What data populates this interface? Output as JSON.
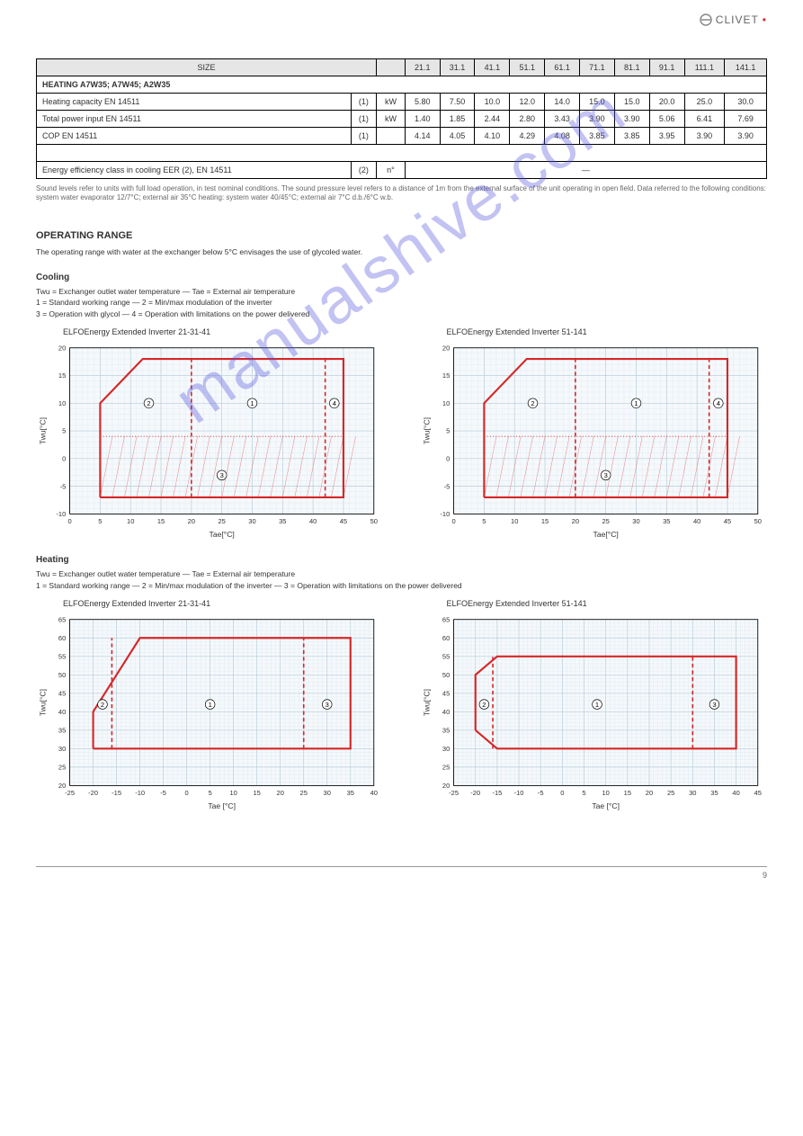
{
  "logo_text": "CLIVET",
  "table": {
    "headers": [
      "SIZE",
      "",
      "",
      "21.1",
      "31.1",
      "41.1",
      "51.1",
      "61.1",
      "71.1",
      "81.1",
      "91.1",
      "111.1",
      "141.1"
    ],
    "section_header": "HEATING A7W35; A7W45; A2W35",
    "rows": [
      {
        "label": "Heating capacity EN 14511",
        "unit": "kW",
        "vals": [
          "5.80",
          "7.50",
          "10.0",
          "12.0",
          "14.0",
          "15.0",
          "15.0",
          "20.0",
          "25.0",
          "30.0"
        ]
      },
      {
        "label": "Total power input EN 14511",
        "unit": "kW",
        "vals": [
          "1.40",
          "1.85",
          "2.44",
          "2.80",
          "3.43",
          "3.90",
          "3.90",
          "5.06",
          "6.41",
          "7.69"
        ]
      },
      {
        "label": "COP EN 14511",
        "unit": "",
        "vals": [
          "4.14",
          "4.05",
          "4.10",
          "4.29",
          "4.08",
          "3.85",
          "3.85",
          "3.95",
          "3.90",
          "3.90"
        ]
      }
    ],
    "note_row": {
      "label": "Energy efficiency class in cooling EER (2), EN 14511",
      "unit": "n°"
    },
    "val_note": "—"
  },
  "footnote": "Sound levels refer to units with full load operation, in test nominal conditions. The sound pressure level refers to a distance of 1m from the external surface of the unit operating in open field. Data referred to the following conditions: system water evaporator 12/7°C; external air 35°C heating: system water 40/45°C; external air 7°C d.b./6°C w.b.",
  "sec_operating": "OPERATING RANGE",
  "op_body": "The operating range with water at the exchanger below 5°C envisages the use of glycoled water.",
  "sub_cooling": "Cooling",
  "cooling_legend": "Twu = Exchanger outlet water temperature — Tae = External air temperature\n1 = Standard working range — 2 = Min/max modulation of the inverter\n3 = Operation with glycol — 4 = Operation with limitations on the power delivered",
  "chart_cool_left_title": "ELFOEnergy Extended Inverter 21-31-41",
  "chart_cool_right_title": "ELFOEnergy Extended Inverter 51-141",
  "chart_cool": {
    "type": "line-region",
    "xlabel": "Tae[°C]",
    "ylabel": "Twu[°C]",
    "xlim": [
      0,
      50
    ],
    "ylim": [
      -10,
      20
    ],
    "xticks": [
      0,
      5,
      10,
      15,
      20,
      25,
      30,
      35,
      40,
      45,
      50
    ],
    "yticks": [
      -10,
      -5,
      0,
      5,
      10,
      15,
      20
    ],
    "grid_minor": "#d8e4ec",
    "grid_major": "#b8ccd8",
    "line_color": "#d62728",
    "line_width": 2,
    "dash_color": "#d62728",
    "hatch_color": "#d62728",
    "background": "#f5f9fc",
    "outer_poly": [
      [
        5,
        -7
      ],
      [
        5,
        10
      ],
      [
        12,
        18
      ],
      [
        45,
        18
      ],
      [
        45,
        -7
      ],
      [
        5,
        -7
      ]
    ],
    "vdash": [
      20,
      42
    ],
    "hdotted_y": 4,
    "hatch_ymax": -7,
    "hatch_ymin": -7,
    "zones": {
      "1": [
        30,
        10
      ],
      "2": [
        13,
        10
      ],
      "3": [
        25,
        -3
      ],
      "4": [
        43.5,
        10
      ]
    }
  },
  "sub_heating": "Heating",
  "heating_legend": "Twu = Exchanger outlet water temperature — Tae = External air temperature\n1 = Standard working range — 2 = Min/max modulation of the inverter — 3 = Operation with limitations on the power delivered",
  "chart_heat_left_title": "ELFOEnergy Extended Inverter 21-31-41",
  "chart_heat_right_title": "ELFOEnergy Extended Inverter 51-141",
  "chart_heat_left": {
    "type": "line-region",
    "xlabel": "Tae [°C]",
    "ylabel": "Twu[°C]",
    "xlim": [
      -25,
      40
    ],
    "ylim": [
      20,
      65
    ],
    "xticks": [
      -25,
      -20,
      -15,
      -10,
      -5,
      0,
      5,
      10,
      15,
      20,
      25,
      30,
      35,
      40
    ],
    "yticks": [
      20,
      25,
      30,
      35,
      40,
      45,
      50,
      55,
      60,
      65
    ],
    "grid_minor": "#d8e4ec",
    "grid_major": "#b8ccd8",
    "line_color": "#d62728",
    "line_width": 2,
    "dash_color": "#d62728",
    "background": "#f5f9fc",
    "outer_poly": [
      [
        -20,
        30
      ],
      [
        -20,
        40
      ],
      [
        -10,
        60
      ],
      [
        35,
        60
      ],
      [
        35,
        30
      ],
      [
        -20,
        30
      ]
    ],
    "vdash": [
      -16,
      25
    ],
    "zones": {
      "1": [
        5,
        42
      ],
      "2": [
        -18,
        42
      ],
      "3": [
        30,
        42
      ]
    }
  },
  "chart_heat_right": {
    "type": "line-region",
    "xlabel": "Tae [°C]",
    "ylabel": "Twu[°C]",
    "xlim": [
      -25,
      45
    ],
    "ylim": [
      20,
      65
    ],
    "xticks": [
      -25,
      -20,
      -15,
      -10,
      -5,
      0,
      5,
      10,
      15,
      20,
      25,
      30,
      35,
      40,
      45
    ],
    "yticks": [
      20,
      25,
      30,
      35,
      40,
      45,
      50,
      55,
      60,
      65
    ],
    "grid_minor": "#d8e4ec",
    "grid_major": "#b8ccd8",
    "line_color": "#d62728",
    "line_width": 2,
    "dash_color": "#d62728",
    "background": "#f5f9fc",
    "outer_poly": [
      [
        -20,
        35
      ],
      [
        -20,
        50
      ],
      [
        -15,
        55
      ],
      [
        40,
        55
      ],
      [
        40,
        30
      ],
      [
        -15,
        30
      ],
      [
        -20,
        35
      ]
    ],
    "vdash": [
      -16,
      30
    ],
    "zones": {
      "1": [
        8,
        42
      ],
      "2": [
        -18,
        42
      ],
      "3": [
        35,
        42
      ]
    }
  },
  "page_number": "9"
}
